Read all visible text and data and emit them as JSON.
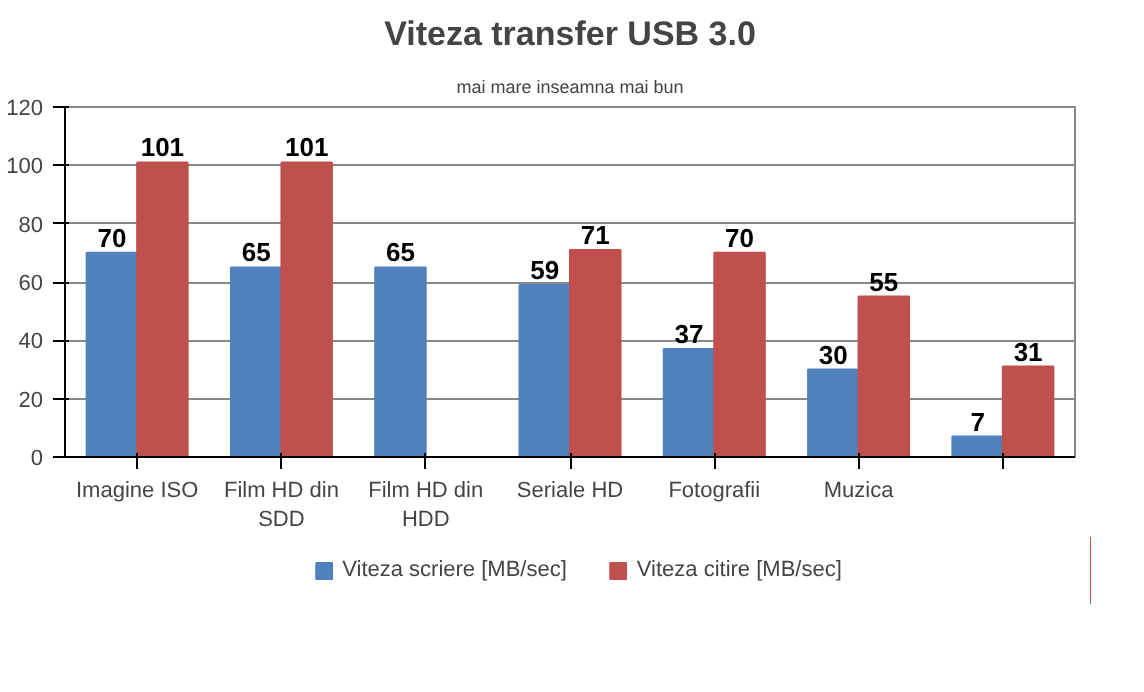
{
  "chart_data": {
    "type": "bar",
    "title": "Viteza transfer USB 3.0",
    "subtitle": "mai mare inseamna mai bun",
    "categories": [
      "Imagine ISO",
      "Film HD din\nSDD",
      "Film HD din\nHDD",
      "Seriale HD",
      "Fotografii",
      "Muzica",
      null
    ],
    "series": [
      {
        "name": "Viteza scriere [MB/sec]",
        "color": "#4f81bd",
        "values": [
          70,
          65,
          65,
          59,
          37,
          30,
          7
        ]
      },
      {
        "name": "Viteza citire [MB/sec]",
        "color": "#c0504d",
        "values": [
          101,
          101,
          null,
          71,
          70,
          55,
          31
        ]
      }
    ],
    "ylim": [
      0,
      120
    ],
    "yticks": [
      0,
      20,
      40,
      60,
      80,
      100,
      120
    ],
    "grid": "y",
    "legend": "bottom",
    "data_labels": true
  }
}
